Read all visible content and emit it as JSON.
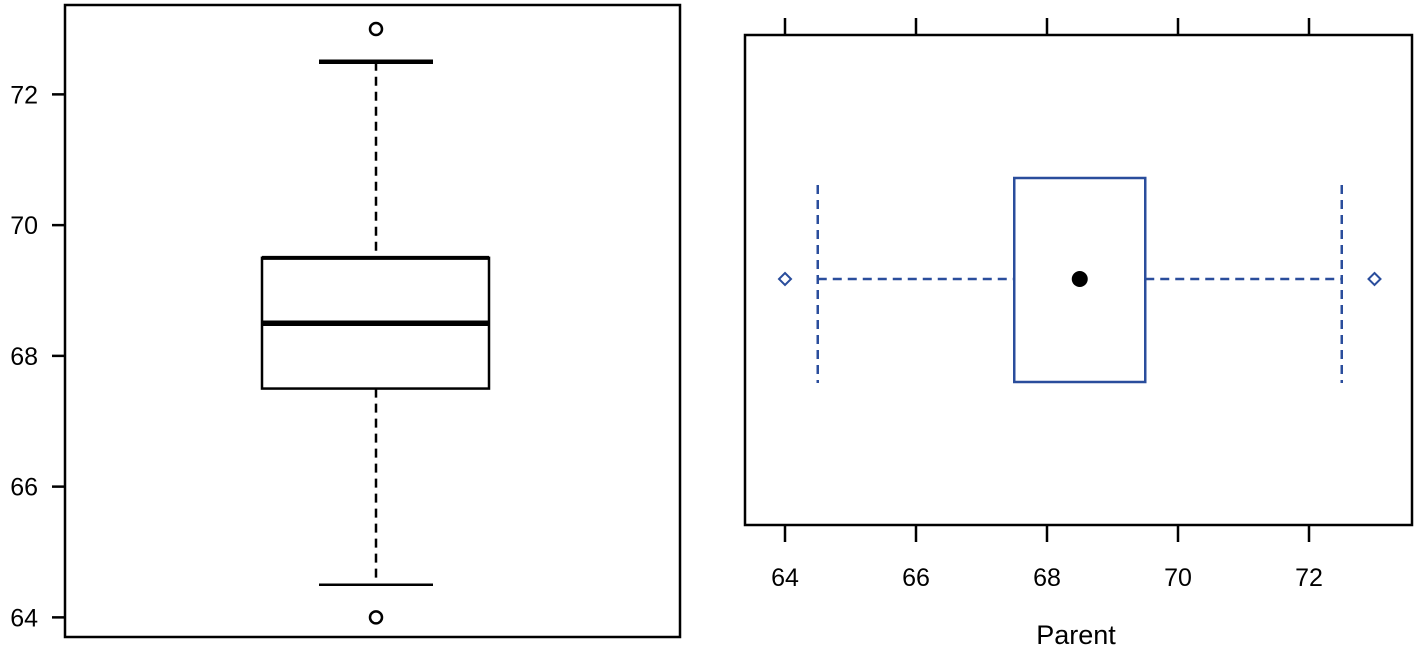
{
  "chart_data": [
    {
      "type": "boxplot",
      "orientation": "vertical",
      "title": "",
      "xlabel": "",
      "ylabel": "",
      "ylim": [
        63.6,
        73.4
      ],
      "yticks": [
        64,
        66,
        68,
        70,
        72
      ],
      "ytick_labels": [
        "64",
        "66",
        "68",
        "70",
        "72"
      ],
      "box": {
        "whisker_low": 64.5,
        "q1": 67.5,
        "median": 68.5,
        "q3": 69.5,
        "whisker_high": 72.5
      },
      "outliers": [
        64,
        73
      ],
      "color": "#000000"
    },
    {
      "type": "boxplot",
      "orientation": "horizontal",
      "title": "",
      "xlabel": "Parent",
      "ylabel": "",
      "xlim": [
        63.6,
        73.5
      ],
      "xticks": [
        64,
        66,
        68,
        70,
        72
      ],
      "xtick_labels": [
        "64",
        "66",
        "68",
        "70",
        "72"
      ],
      "box": {
        "whisker_low": 64.5,
        "q1": 67.5,
        "median": 68.5,
        "q3": 69.5,
        "whisker_high": 72.5
      },
      "outliers": [
        64,
        73
      ],
      "color": "#2a4d9c"
    }
  ]
}
